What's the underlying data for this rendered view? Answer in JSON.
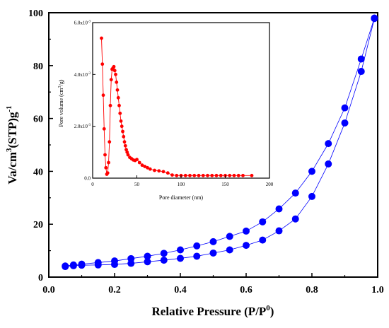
{
  "chart_data": [
    {
      "type": "line",
      "role": "main",
      "xlabel_main": "Relative Pressure (P/P",
      "xlabel_sup": "0",
      "xlabel_tail": ")",
      "ylabel_main": "Va/cm",
      "ylabel_sup1": "3",
      "ylabel_mid": "(STP)g",
      "ylabel_sup2": "-1",
      "xlim": [
        0.0,
        1.0
      ],
      "ylim": [
        0,
        100
      ],
      "xticks": [
        "0.0",
        "0.2",
        "0.4",
        "0.6",
        "0.8",
        "1.0"
      ],
      "yticks": [
        "0",
        "20",
        "40",
        "60",
        "80",
        "100"
      ],
      "grid": false,
      "series": [
        {
          "role": "adsorption",
          "color": "#0000ff",
          "x": [
            0.05,
            0.075,
            0.1,
            0.15,
            0.2,
            0.25,
            0.3,
            0.35,
            0.4,
            0.45,
            0.5,
            0.55,
            0.6,
            0.65,
            0.7,
            0.75,
            0.8,
            0.85,
            0.9,
            0.95,
            0.99
          ],
          "y": [
            4.0,
            4.3,
            4.5,
            4.6,
            4.8,
            5.2,
            5.8,
            6.4,
            7.1,
            7.9,
            9.1,
            10.3,
            12.0,
            14.0,
            17.5,
            22.0,
            30.5,
            42.8,
            58.3,
            77.8,
            97.8
          ]
        },
        {
          "role": "desorption",
          "color": "#0000ff",
          "x": [
            0.05,
            0.075,
            0.1,
            0.15,
            0.2,
            0.25,
            0.3,
            0.35,
            0.4,
            0.45,
            0.5,
            0.55,
            0.6,
            0.65,
            0.7,
            0.75,
            0.8,
            0.85,
            0.9,
            0.95,
            0.99
          ],
          "y": [
            4.2,
            4.6,
            4.9,
            5.5,
            6.1,
            7.0,
            7.9,
            9.0,
            10.3,
            11.8,
            13.4,
            15.4,
            17.4,
            20.9,
            25.8,
            31.8,
            40.0,
            50.5,
            64.0,
            82.5,
            98.0
          ]
        }
      ]
    },
    {
      "type": "line",
      "role": "inset",
      "xlabel": "Pore diameter (nm)",
      "ylabel_main": "Pore volume (cm",
      "ylabel_sup": "3",
      "ylabel_tail": "/g)",
      "xlim": [
        0,
        200
      ],
      "ylim": [
        0,
        0.006
      ],
      "xticks": [
        "0",
        "50",
        "100",
        "150",
        "200"
      ],
      "yticks": [
        "0.0",
        "2.0x10",
        "4.0x10",
        "6.0x10"
      ],
      "ytick_sup": "-3",
      "series": [
        {
          "color": "#ff0000",
          "x": [
            10,
            11,
            12,
            13,
            14,
            15,
            16,
            17,
            18,
            19,
            20,
            21,
            22,
            23,
            24,
            25,
            26,
            27,
            28,
            29,
            30,
            31,
            32,
            33,
            34,
            35,
            36,
            37,
            38,
            39,
            40,
            42,
            44,
            46,
            48,
            50,
            53,
            56,
            59,
            62,
            65,
            70,
            75,
            80,
            85,
            90,
            95,
            100,
            105,
            110,
            115,
            120,
            125,
            130,
            135,
            140,
            145,
            150,
            155,
            160,
            165,
            170,
            180
          ],
          "y": [
            0.0054,
            0.0044,
            0.0032,
            0.0019,
            0.0009,
            0.0004,
            0.00015,
            0.0002,
            0.0006,
            0.0014,
            0.0028,
            0.0038,
            0.0042,
            0.00425,
            0.0043,
            0.00415,
            0.004,
            0.0037,
            0.0034,
            0.0031,
            0.0028,
            0.0025,
            0.0022,
            0.002,
            0.0018,
            0.0016,
            0.0014,
            0.00125,
            0.0011,
            0.001,
            0.0009,
            0.0008,
            0.00075,
            0.0007,
            0.00068,
            0.00072,
            0.0006,
            0.0005,
            0.00045,
            0.0004,
            0.00035,
            0.0003,
            0.00028,
            0.00025,
            0.0002,
            0.00012,
            0.0001,
            0.0001,
            0.0001,
            0.0001,
            0.0001,
            0.0001,
            0.0001,
            0.0001,
            0.0001,
            0.0001,
            0.0001,
            0.0001,
            0.0001,
            0.0001,
            0.0001,
            0.0001,
            0.0001
          ]
        }
      ]
    }
  ]
}
